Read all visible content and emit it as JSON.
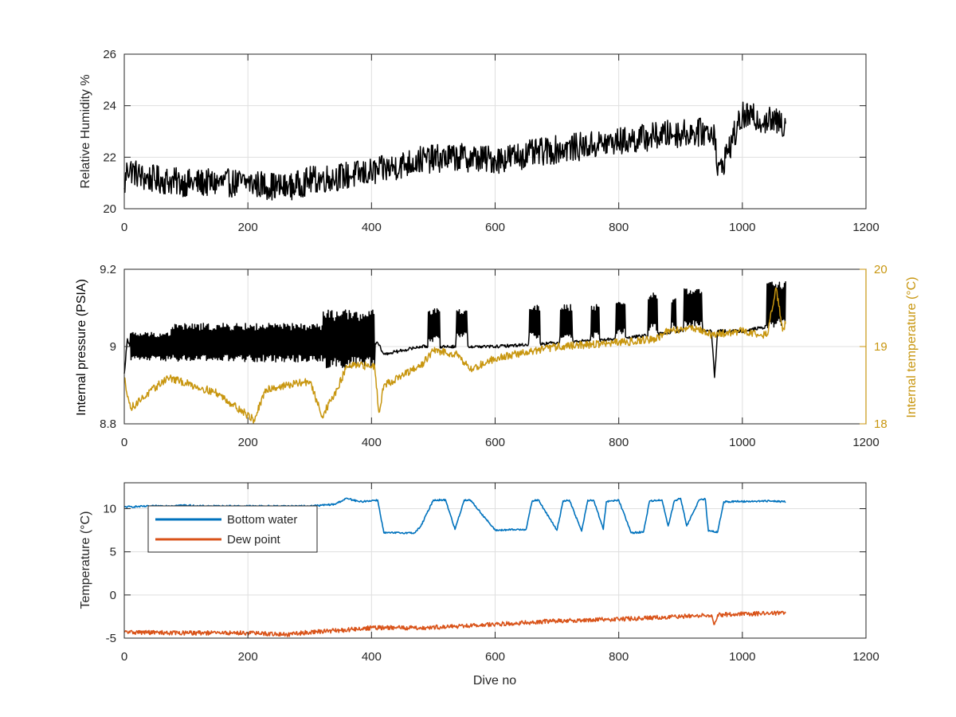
{
  "chart_data": [
    {
      "type": "line",
      "panel": "top",
      "xlim": [
        0,
        1200
      ],
      "ylim": [
        20,
        26
      ],
      "xticks": [
        0,
        200,
        400,
        600,
        800,
        1000,
        1200
      ],
      "yticks": [
        20,
        22,
        24,
        26
      ],
      "xlabel": "",
      "ylabel": "Relative Humidity %",
      "grid": true,
      "series": [
        {
          "color": "#000000",
          "noise": 0.55,
          "x": [
            0,
            5,
            30,
            100,
            200,
            265,
            300,
            400,
            480,
            540,
            600,
            700,
            800,
            880,
            955,
            960,
            1000,
            1070
          ],
          "y": [
            20.8,
            21.6,
            21.2,
            21.0,
            21.0,
            20.8,
            21.1,
            21.4,
            21.9,
            22.0,
            21.9,
            22.3,
            22.6,
            22.9,
            23.0,
            21.3,
            23.6,
            23.3
          ]
        }
      ]
    },
    {
      "type": "line",
      "panel": "middle",
      "xlim": [
        0,
        1200
      ],
      "ylim": [
        8.8,
        9.2
      ],
      "ylim_right": [
        18,
        20
      ],
      "xticks": [
        0,
        200,
        400,
        600,
        800,
        1000,
        1200
      ],
      "yticks": [
        8.8,
        9.0,
        9.2
      ],
      "ytick_labels": [
        "8.8",
        "9",
        "9.2"
      ],
      "yticks_right": [
        18,
        19,
        20
      ],
      "xlabel": "",
      "ylabel": "Internal pressure (PSIA)",
      "ylabel_right": "Internal temperature (°C)",
      "right_axis_color": "#c8960f",
      "grid": true,
      "series": [
        {
          "axis": "left",
          "color": "#000000",
          "noise": 0.004,
          "x": [
            0,
            5,
            10,
            400,
            410,
            420,
            480,
            520,
            600,
            700,
            800,
            900,
            950,
            955,
            960,
            1000,
            1070
          ],
          "y": [
            8.93,
            9.02,
            9.0,
            9.0,
            9.01,
            8.98,
            9.0,
            9.0,
            9.0,
            9.01,
            9.02,
            9.04,
            9.04,
            8.92,
            9.04,
            9.04,
            9.06
          ],
          "oscillations": [
            {
              "from": 10,
              "to": 75,
              "low": 8.97,
              "high": 9.03
            },
            {
              "from": 75,
              "to": 320,
              "low": 8.97,
              "high": 9.05
            },
            {
              "from": 320,
              "to": 405,
              "low": 8.96,
              "high": 9.08
            },
            {
              "from": 492,
              "to": 510,
              "low": 9.02,
              "high": 9.09
            },
            {
              "from": 537,
              "to": 555,
              "low": 9.03,
              "high": 9.09
            },
            {
              "from": 655,
              "to": 672,
              "low": 9.03,
              "high": 9.1
            },
            {
              "from": 705,
              "to": 725,
              "low": 9.03,
              "high": 9.1
            },
            {
              "from": 755,
              "to": 768,
              "low": 9.03,
              "high": 9.1
            },
            {
              "from": 795,
              "to": 810,
              "low": 9.04,
              "high": 9.11
            },
            {
              "from": 848,
              "to": 862,
              "low": 9.05,
              "high": 9.13
            },
            {
              "from": 885,
              "to": 892,
              "low": 9.06,
              "high": 9.12
            },
            {
              "from": 905,
              "to": 935,
              "low": 9.06,
              "high": 9.14
            },
            {
              "from": 1040,
              "to": 1070,
              "low": 9.06,
              "high": 9.16
            }
          ]
        },
        {
          "axis": "right",
          "color": "#c8960f",
          "noise": 0.05,
          "x": [
            0,
            10,
            25,
            70,
            150,
            210,
            230,
            300,
            320,
            345,
            360,
            405,
            412,
            420,
            480,
            500,
            540,
            560,
            600,
            700,
            800,
            860,
            880,
            920,
            950,
            1000,
            1040,
            1055,
            1065,
            1070
          ],
          "y": [
            18.6,
            18.2,
            18.3,
            18.6,
            18.4,
            18.05,
            18.45,
            18.55,
            18.1,
            18.45,
            18.75,
            18.75,
            18.15,
            18.5,
            18.75,
            18.95,
            18.9,
            18.7,
            18.85,
            19.0,
            19.05,
            19.1,
            19.2,
            19.25,
            19.15,
            19.2,
            19.15,
            19.75,
            19.2,
            19.3
          ]
        }
      ]
    },
    {
      "type": "line",
      "panel": "bottom",
      "xlim": [
        0,
        1200
      ],
      "ylim": [
        -5,
        13
      ],
      "xticks": [
        0,
        200,
        400,
        600,
        800,
        1000,
        1200
      ],
      "yticks": [
        -5,
        0,
        5,
        10
      ],
      "xlabel": "Dive no",
      "ylabel": "Temperature (°C)",
      "grid": true,
      "legend": "top-left",
      "series": [
        {
          "name": "Bottom water",
          "color": "#0072bd",
          "noise": 0.1,
          "x": [
            0,
            100,
            120,
            300,
            340,
            360,
            380,
            410,
            420,
            470,
            480,
            500,
            520,
            535,
            550,
            560,
            600,
            650,
            660,
            670,
            700,
            710,
            720,
            740,
            750,
            760,
            775,
            780,
            800,
            820,
            840,
            850,
            870,
            880,
            890,
            900,
            910,
            930,
            940,
            945,
            960,
            970,
            1050,
            1070
          ],
          "y": [
            10.2,
            10.4,
            10.3,
            10.3,
            10.5,
            11.2,
            10.8,
            11.0,
            7.2,
            7.2,
            8.0,
            11.0,
            11.0,
            7.6,
            11.0,
            11.0,
            7.5,
            7.6,
            10.9,
            11.0,
            7.5,
            10.9,
            11.0,
            7.4,
            11.0,
            10.9,
            7.6,
            10.8,
            11.0,
            7.2,
            7.3,
            10.9,
            11.0,
            8.0,
            10.9,
            11.2,
            8.0,
            11.0,
            11.1,
            7.4,
            7.3,
            10.8,
            10.9,
            10.8
          ]
        },
        {
          "name": "Dew point",
          "color": "#d95319",
          "noise": 0.25,
          "x": [
            0,
            100,
            200,
            265,
            300,
            350,
            400,
            480,
            550,
            600,
            700,
            800,
            900,
            950,
            955,
            960,
            1000,
            1070
          ],
          "y": [
            -4.3,
            -4.4,
            -4.4,
            -4.6,
            -4.3,
            -4.1,
            -3.8,
            -3.8,
            -3.6,
            -3.4,
            -3.0,
            -2.8,
            -2.5,
            -2.3,
            -3.4,
            -2.3,
            -2.2,
            -2.1
          ]
        }
      ]
    }
  ]
}
